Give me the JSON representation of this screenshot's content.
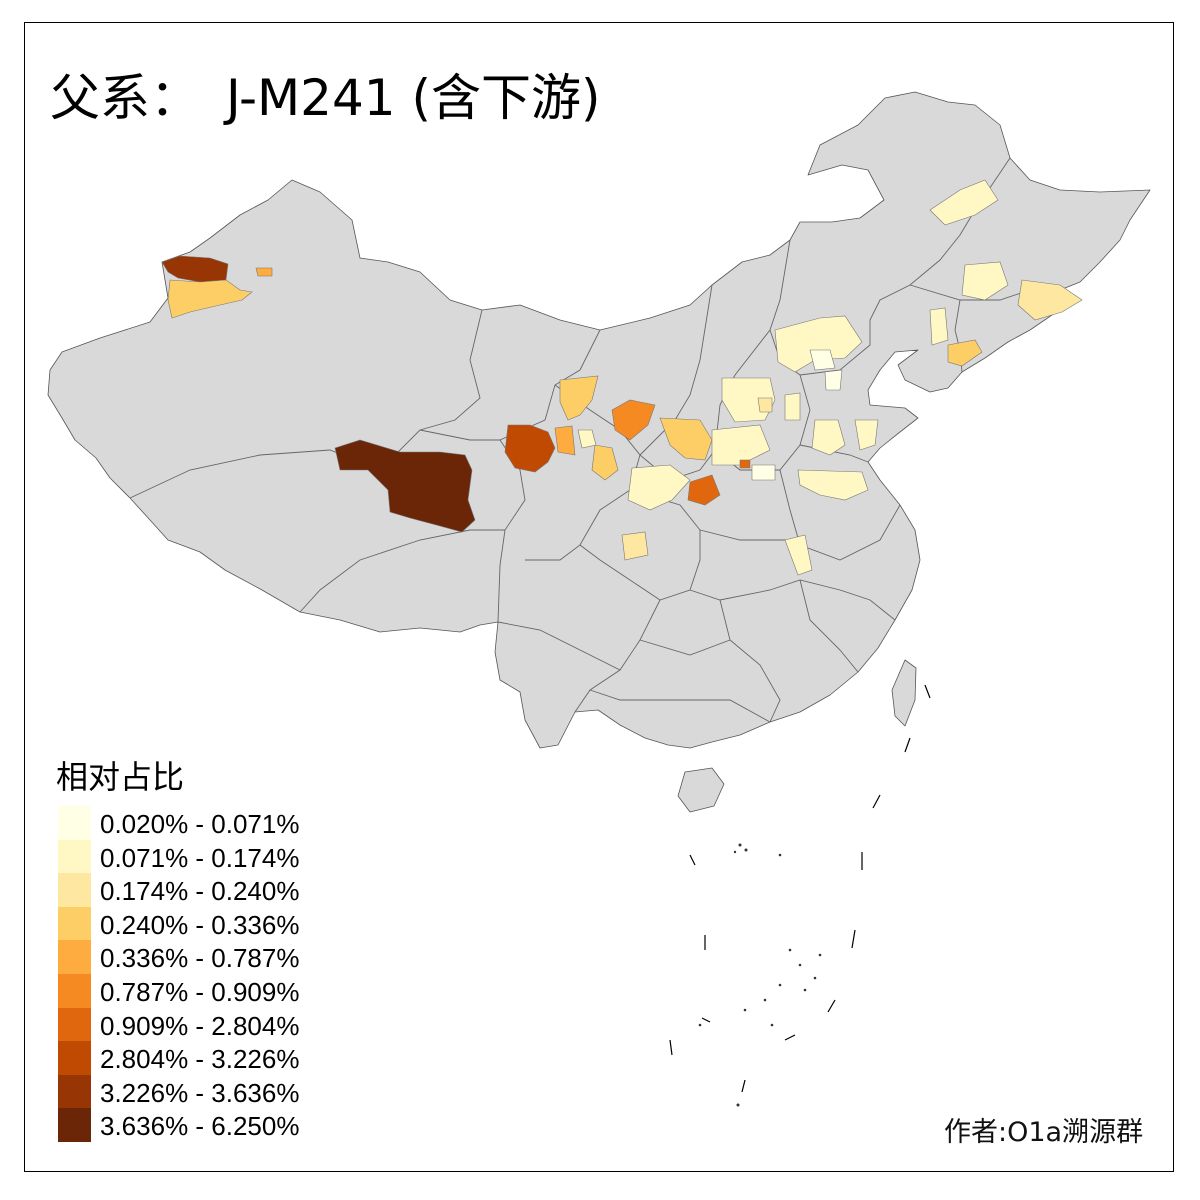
{
  "title": {
    "prefix": "父系：",
    "main": "J-M241 (含下游)"
  },
  "legend": {
    "title": "相对占比",
    "items": [
      {
        "label": "0.020% - 0.071%",
        "color": "#ffffe5"
      },
      {
        "label": "0.071% - 0.174%",
        "color": "#fff7c4"
      },
      {
        "label": "0.174% - 0.240%",
        "color": "#fee7a0"
      },
      {
        "label": "0.240% - 0.336%",
        "color": "#fece66"
      },
      {
        "label": "0.336% - 0.787%",
        "color": "#feac3f"
      },
      {
        "label": "0.787% - 0.909%",
        "color": "#f68a22"
      },
      {
        "label": "0.909% - 2.804%",
        "color": "#e1670f"
      },
      {
        "label": "2.804% - 3.226%",
        "color": "#c14a03"
      },
      {
        "label": "3.226% - 3.636%",
        "color": "#983505"
      },
      {
        "label": "3.636% - 6.250%",
        "color": "#6b2608"
      }
    ]
  },
  "credit": "作者:O1a溯源群",
  "colors": {
    "no_data": "#d9d9d9",
    "boundary": "#555555",
    "frame": "#000000"
  }
}
